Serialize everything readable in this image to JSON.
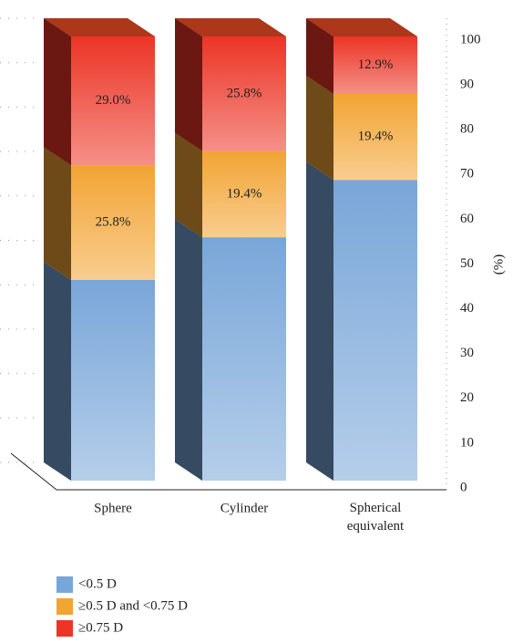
{
  "chart_data": {
    "type": "stacked_bar_3d",
    "categories": [
      "Sphere",
      "Cylinder",
      "Spherical equivalent"
    ],
    "series": [
      {
        "name": "<0.5 D",
        "color": "#79a6d8",
        "values": [
          45.2,
          54.8,
          67.7
        ]
      },
      {
        "name": "≥0.5 D and <0.75 D",
        "color": "#f2a434",
        "values": [
          25.8,
          19.4,
          19.4
        ],
        "value_labels": [
          "25.8%",
          "19.4%",
          "19.4%"
        ]
      },
      {
        "name": "≥0.75 D",
        "color": "#ec3526",
        "values": [
          29.0,
          25.8,
          12.9
        ],
        "value_labels": [
          "29.0%",
          "25.8%",
          "12.9%"
        ]
      }
    ],
    "y_label": "(%)",
    "ylim": [
      0,
      100
    ],
    "yticks": [
      0,
      10,
      20,
      30,
      40,
      50,
      60,
      70,
      80,
      90,
      100
    ],
    "grid": true,
    "legend": "bottom"
  }
}
